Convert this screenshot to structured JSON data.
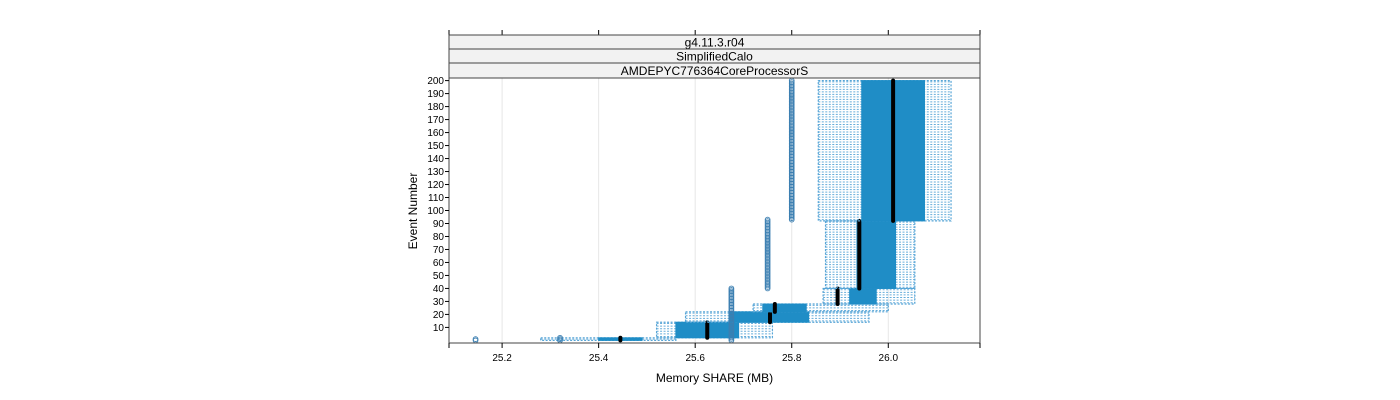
{
  "chart_data": {
    "type": "box",
    "strips": [
      "g4.11.3.r04",
      "SimplifiedCalo",
      "AMDEPYC776364CoreProcessorS"
    ],
    "xlabel": "Memory SHARE (MB)",
    "ylabel": "Event Number",
    "xlim": [
      25.09,
      26.19
    ],
    "ylim": [
      -2,
      202
    ],
    "x_ticks": [
      25.2,
      25.4,
      25.6,
      25.8,
      26.0
    ],
    "x_tick_labels": [
      "25.2",
      "25.4",
      "25.6",
      "25.8",
      "26.0"
    ],
    "y_ticks": [
      10,
      20,
      30,
      40,
      50,
      60,
      70,
      80,
      90,
      100,
      110,
      120,
      130,
      140,
      150,
      160,
      170,
      180,
      190,
      200
    ],
    "y_tick_labels": [
      "10",
      "20",
      "30",
      "40",
      "50",
      "60",
      "70",
      "80",
      "90",
      "100",
      "110",
      "120",
      "130",
      "140",
      "150",
      "160",
      "170",
      "180",
      "190",
      "200"
    ],
    "grid": "vertical",
    "colors": {
      "box": "#1f8dc6",
      "whisker": "#55a4d6",
      "median": "#000000",
      "outlier": "#3c7fb1",
      "panel_border": "#444444",
      "strip_bg": "#f2f2f2",
      "grid": "#e6e6e6"
    },
    "groups": [
      {
        "events": [
          0,
          2
        ],
        "whisker": [
          25.28,
          25.56
        ],
        "box": [
          25.4,
          25.49
        ],
        "median": 25.445,
        "outliers": [
          25.145,
          25.32
        ]
      },
      {
        "events": [
          2,
          14
        ],
        "whisker": [
          25.52,
          25.76
        ],
        "box": [
          25.56,
          25.69
        ],
        "median": 25.625,
        "outliers": []
      },
      {
        "events": [
          14,
          22
        ],
        "whisker": [
          25.58,
          25.96
        ],
        "box": [
          25.67,
          25.835
        ],
        "median": 25.755,
        "outliers": []
      },
      {
        "events": [
          22,
          28
        ],
        "whisker": [
          25.72,
          26.0
        ],
        "box": [
          25.74,
          25.83
        ],
        "median": 25.765,
        "outliers": []
      },
      {
        "events": [
          28,
          40
        ],
        "whisker": [
          25.865,
          26.055
        ],
        "box": [
          25.92,
          25.975
        ],
        "median": 25.895,
        "outliers": []
      },
      {
        "events": [
          40,
          92
        ],
        "whisker": [
          25.87,
          26.055
        ],
        "box": [
          25.935,
          26.015
        ],
        "median": 25.94,
        "outliers": [
          25.68
        ]
      },
      {
        "events": [
          92,
          200
        ],
        "whisker": [
          25.855,
          26.13
        ],
        "box": [
          25.945,
          26.075
        ],
        "median": 26.01,
        "outliers": [
          25.75,
          25.8
        ]
      }
    ],
    "outlier_series": [
      {
        "x": 25.675,
        "events": [
          0,
          40
        ]
      },
      {
        "x": 25.75,
        "events": [
          40,
          93
        ]
      },
      {
        "x": 25.8,
        "events": [
          93,
          200
        ]
      },
      {
        "x": 25.145,
        "events": [
          0,
          1
        ]
      },
      {
        "x": 25.32,
        "events": [
          0,
          2
        ]
      }
    ]
  }
}
